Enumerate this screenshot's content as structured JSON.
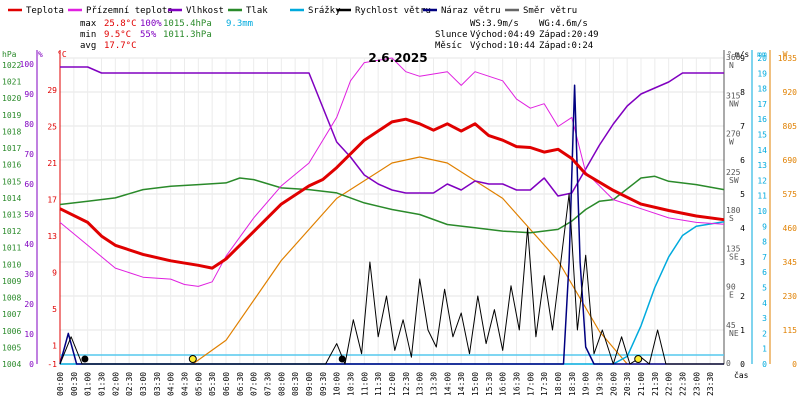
{
  "chart_data": {
    "type": "line",
    "title": "2.6.2025",
    "legend": [
      {
        "name": "Teplota",
        "color": "#e00000"
      },
      {
        "name": "Přízemní teplota",
        "color": "#e020e0"
      },
      {
        "name": "Vlhkost",
        "color": "#8000c0"
      },
      {
        "name": "Tlak",
        "color": "#2a8a2a"
      },
      {
        "name": "Srážky",
        "color": "#00aadd"
      },
      {
        "name": "Rychlost větru",
        "color": "#000000"
      },
      {
        "name": "Náraz větru",
        "color": "#000080"
      },
      {
        "name": "Směr větru",
        "color": "#666666"
      }
    ],
    "stats": {
      "max_label": "max",
      "max_temp": "25.8°C",
      "max_hum": "100%",
      "max_press": "1015.4hPa",
      "rain": "9.3mm",
      "min_label": "min",
      "min_temp": "9.5°C",
      "min_hum": "55%",
      "min_press": "1011.3hPa",
      "avg_label": "avg",
      "avg_temp": "17.7°C",
      "ws": "WS:3.9m/s",
      "wg": "WG:4.6m/s",
      "sun": "Slunce",
      "sun_rise": "Východ:04:49",
      "sun_set": "Západ:20:49",
      "moon": "Měsíc",
      "moon_rise": "Východ:10:44",
      "moon_set": "Západ:0:24"
    },
    "left_axes": {
      "hpa": {
        "unit": "hPa",
        "color": "#2a8a2a",
        "ticks": [
          "1022",
          "1021",
          "1020",
          "1019",
          "1018",
          "1017",
          "1016",
          "1015",
          "1014",
          "1013",
          "1012",
          "1011",
          "1010",
          "1009",
          "1008",
          "1007",
          "1006",
          "1005",
          "1004"
        ]
      },
      "pct": {
        "unit": "%",
        "color": "#8000c0",
        "ticks": [
          "100",
          "90",
          "80",
          "70",
          "60",
          "50",
          "40",
          "30",
          "20",
          "10",
          "0"
        ]
      },
      "degc": {
        "unit": "°C",
        "color": "#e00000",
        "ticks": [
          "29",
          "25",
          "21",
          "17",
          "13",
          "9",
          "5",
          "1",
          "-1"
        ]
      }
    },
    "right_axes": {
      "deg": {
        "unit": "°",
        "color": "#555555",
        "ticks": [
          {
            "v": "360",
            "d": "N"
          },
          {
            "v": "315",
            "d": "NW"
          },
          {
            "v": "270",
            "d": "W"
          },
          {
            "v": "225",
            "d": "SW"
          },
          {
            "v": "180",
            "d": "S"
          },
          {
            "v": "135",
            "d": "SE"
          },
          {
            "v": "90",
            "d": "E"
          },
          {
            "v": "45",
            "d": "NE"
          },
          {
            "v": "0",
            "d": ""
          }
        ]
      },
      "ms": {
        "unit": "m/s",
        "color": "#000000",
        "ticks": [
          "9",
          "8",
          "7",
          "6",
          "5",
          "4",
          "3",
          "2",
          "1",
          "0"
        ]
      },
      "mm": {
        "unit": "mm",
        "color": "#00aadd",
        "ticks": [
          "20",
          "19",
          "18",
          "17",
          "16",
          "15",
          "14",
          "13",
          "12",
          "11",
          "10",
          "9",
          "8",
          "7",
          "6",
          "5",
          "4",
          "3",
          "2",
          "1",
          "0"
        ]
      },
      "wm2": {
        "unit": "W",
        "color": "#e08000",
        "ticks": [
          "1035",
          "920",
          "805",
          "690",
          "575",
          "460",
          "345",
          "230",
          "115",
          "0"
        ]
      }
    },
    "x_label": "čas",
    "x_ticks": [
      "00:00",
      "00:30",
      "01:00",
      "01:30",
      "02:00",
      "02:30",
      "03:00",
      "03:30",
      "04:00",
      "04:30",
      "05:00",
      "05:30",
      "06:00",
      "06:30",
      "07:00",
      "07:30",
      "08:00",
      "08:30",
      "09:00",
      "09:30",
      "10:00",
      "10:30",
      "11:00",
      "11:30",
      "12:00",
      "12:30",
      "13:00",
      "13:30",
      "14:00",
      "14:30",
      "15:00",
      "15:30",
      "16:00",
      "16:30",
      "17:00",
      "17:30",
      "18:00",
      "18:30",
      "19:00",
      "19:30",
      "20:00",
      "20:30",
      "21:00",
      "21:30",
      "22:00",
      "22:30",
      "23:00",
      "23:30"
    ],
    "series_hours": {
      "temperature": [
        [
          0,
          16
        ],
        [
          1,
          14.5
        ],
        [
          1.5,
          13
        ],
        [
          2,
          12
        ],
        [
          3,
          11
        ],
        [
          4,
          10.3
        ],
        [
          5,
          9.8
        ],
        [
          5.5,
          9.5
        ],
        [
          6,
          10.5
        ],
        [
          7,
          13.5
        ],
        [
          8,
          16.5
        ],
        [
          9,
          18.5
        ],
        [
          9.5,
          19.2
        ],
        [
          10,
          20.5
        ],
        [
          11,
          23.5
        ],
        [
          12,
          25.5
        ],
        [
          12.5,
          25.8
        ],
        [
          13,
          25.3
        ],
        [
          13.5,
          24.6
        ],
        [
          14,
          25.3
        ],
        [
          14.5,
          24.5
        ],
        [
          15,
          25.3
        ],
        [
          15.5,
          24
        ],
        [
          16,
          23.5
        ],
        [
          16.5,
          22.8
        ],
        [
          17,
          22.7
        ],
        [
          17.5,
          22.2
        ],
        [
          18,
          22.5
        ],
        [
          18.5,
          21.5
        ],
        [
          19,
          19.8
        ],
        [
          20,
          18
        ],
        [
          21,
          16.5
        ],
        [
          22,
          15.8
        ],
        [
          23,
          15.2
        ],
        [
          24,
          14.8
        ]
      ],
      "ground_temp": [
        [
          0,
          14.5
        ],
        [
          1,
          12
        ],
        [
          2,
          9.5
        ],
        [
          3,
          8.5
        ],
        [
          4,
          8.3
        ],
        [
          4.5,
          7.7
        ],
        [
          5,
          7.5
        ],
        [
          5.5,
          8
        ],
        [
          6,
          10.8
        ],
        [
          7,
          15
        ],
        [
          8,
          18.5
        ],
        [
          9,
          21
        ],
        [
          10,
          26
        ],
        [
          10.5,
          30
        ],
        [
          11,
          32
        ],
        [
          12,
          32.5
        ],
        [
          12.5,
          31
        ],
        [
          13,
          30.5
        ],
        [
          14,
          31
        ],
        [
          14.5,
          29.5
        ],
        [
          15,
          31
        ],
        [
          16,
          30
        ],
        [
          16.5,
          28
        ],
        [
          17,
          27
        ],
        [
          17.5,
          27.5
        ],
        [
          18,
          25
        ],
        [
          18.5,
          26
        ],
        [
          19,
          20
        ],
        [
          20,
          17
        ],
        [
          21,
          16
        ],
        [
          22,
          15
        ],
        [
          23,
          14.5
        ],
        [
          24,
          14.3
        ]
      ],
      "humidity": [
        [
          0,
          99
        ],
        [
          1,
          99
        ],
        [
          1.5,
          97
        ],
        [
          2,
          97
        ],
        [
          5,
          97
        ],
        [
          6,
          97
        ],
        [
          7,
          97
        ],
        [
          8,
          97
        ],
        [
          9,
          97
        ],
        [
          10,
          74
        ],
        [
          10.5,
          69
        ],
        [
          11,
          63
        ],
        [
          11.5,
          60
        ],
        [
          12,
          58
        ],
        [
          12.5,
          57
        ],
        [
          13,
          57
        ],
        [
          13.5,
          57
        ],
        [
          14,
          60
        ],
        [
          14.5,
          58
        ],
        [
          15,
          61
        ],
        [
          15.5,
          60
        ],
        [
          16,
          60
        ],
        [
          16.5,
          58
        ],
        [
          17,
          58
        ],
        [
          17.5,
          62
        ],
        [
          18,
          56
        ],
        [
          18.5,
          57
        ],
        [
          19,
          65
        ],
        [
          19.5,
          73
        ],
        [
          20,
          80
        ],
        [
          20.5,
          86
        ],
        [
          21,
          90
        ],
        [
          21.5,
          92
        ],
        [
          22,
          94
        ],
        [
          22.5,
          97
        ],
        [
          23,
          97
        ],
        [
          24,
          97
        ]
      ],
      "pressure": [
        [
          0,
          1013.6
        ],
        [
          1,
          1013.8
        ],
        [
          2,
          1014
        ],
        [
          3,
          1014.5
        ],
        [
          4,
          1014.7
        ],
        [
          5,
          1014.8
        ],
        [
          6,
          1014.9
        ],
        [
          6.5,
          1015.2
        ],
        [
          7,
          1015.1
        ],
        [
          8,
          1014.6
        ],
        [
          9,
          1014.5
        ],
        [
          10,
          1014.3
        ],
        [
          11,
          1013.7
        ],
        [
          12,
          1013.3
        ],
        [
          13,
          1013
        ],
        [
          14,
          1012.4
        ],
        [
          15,
          1012.2
        ],
        [
          16,
          1012
        ],
        [
          17,
          1011.9
        ],
        [
          18,
          1012.1
        ],
        [
          18.5,
          1012.6
        ],
        [
          19,
          1013.3
        ],
        [
          19.5,
          1013.8
        ],
        [
          20,
          1013.9
        ],
        [
          21,
          1015.2
        ],
        [
          21.5,
          1015.3
        ],
        [
          22,
          1015
        ],
        [
          23,
          1014.8
        ],
        [
          24,
          1014.5
        ]
      ],
      "rain_cum": [
        [
          0,
          0
        ],
        [
          20,
          0
        ],
        [
          20.5,
          0.5
        ],
        [
          21,
          2.5
        ],
        [
          21.5,
          5
        ],
        [
          22,
          7
        ],
        [
          22.5,
          8.4
        ],
        [
          23,
          9
        ],
        [
          24,
          9.3
        ]
      ],
      "solar": [
        [
          4.8,
          0
        ],
        [
          6,
          80
        ],
        [
          8,
          350
        ],
        [
          10,
          560
        ],
        [
          12,
          680
        ],
        [
          13,
          700
        ],
        [
          14,
          680
        ],
        [
          16,
          560
        ],
        [
          18,
          350
        ],
        [
          19.5,
          110
        ],
        [
          20.5,
          0
        ]
      ],
      "wind_speed": [
        [
          0,
          0
        ],
        [
          0.4,
          0.8
        ],
        [
          0.8,
          0
        ],
        [
          9.6,
          0
        ],
        [
          10,
          0.6
        ],
        [
          10.3,
          0
        ],
        [
          10.6,
          1.3
        ],
        [
          10.9,
          0.3
        ],
        [
          11.2,
          3
        ],
        [
          11.5,
          0.8
        ],
        [
          11.8,
          2
        ],
        [
          12.1,
          0.4
        ],
        [
          12.4,
          1.3
        ],
        [
          12.7,
          0.2
        ],
        [
          13,
          2.5
        ],
        [
          13.3,
          1
        ],
        [
          13.6,
          0.5
        ],
        [
          13.9,
          2.2
        ],
        [
          14.2,
          0.8
        ],
        [
          14.5,
          1.5
        ],
        [
          14.8,
          0.3
        ],
        [
          15.1,
          2
        ],
        [
          15.4,
          0.6
        ],
        [
          15.7,
          1.6
        ],
        [
          16,
          0.4
        ],
        [
          16.3,
          2.3
        ],
        [
          16.6,
          1
        ],
        [
          16.9,
          4
        ],
        [
          17.2,
          0.8
        ],
        [
          17.5,
          2.6
        ],
        [
          17.8,
          1
        ],
        [
          18.1,
          3
        ],
        [
          18.4,
          5
        ],
        [
          18.7,
          1
        ],
        [
          19,
          3.2
        ],
        [
          19.3,
          0.3
        ],
        [
          19.6,
          1
        ],
        [
          20,
          0
        ],
        [
          20.3,
          0.8
        ],
        [
          20.6,
          0
        ],
        [
          21,
          0.2
        ],
        [
          21.3,
          0
        ],
        [
          21.6,
          1
        ],
        [
          21.9,
          0
        ],
        [
          24,
          0
        ]
      ],
      "wind_gust": [
        [
          0,
          0
        ],
        [
          0.3,
          0.9
        ],
        [
          0.6,
          0
        ],
        [
          9.6,
          0
        ],
        [
          18.2,
          0
        ],
        [
          18.4,
          3
        ],
        [
          18.6,
          8.2
        ],
        [
          18.8,
          3
        ],
        [
          19,
          0.5
        ],
        [
          19.3,
          0
        ],
        [
          24,
          0
        ]
      ]
    }
  }
}
